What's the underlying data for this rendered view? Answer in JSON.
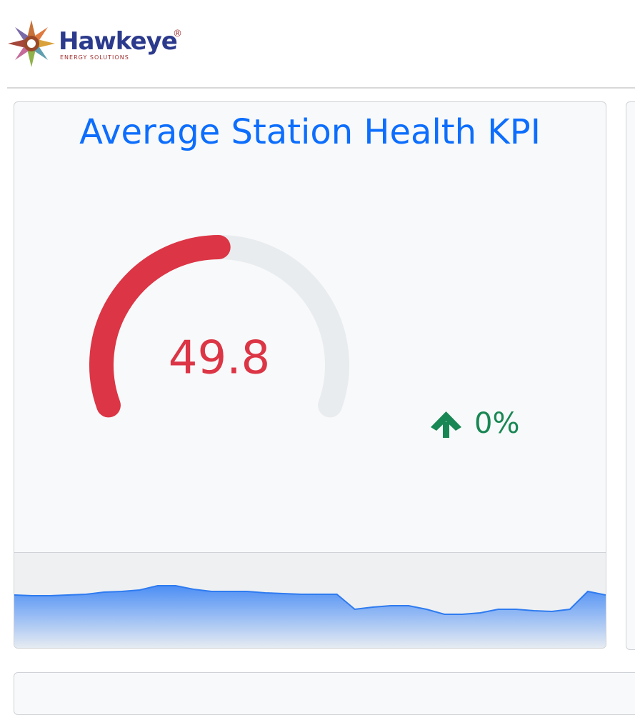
{
  "header": {
    "brand": "Hawkeye",
    "registered": "®",
    "tagline": "ENERGY SOLUTIONS"
  },
  "card": {
    "title": "Average Station Health KPI",
    "gauge": {
      "value": 49.8,
      "label": "49.8",
      "lim": [
        0,
        100
      ]
    },
    "change": "0%",
    "sparkline": {
      "values": [
        74,
        73,
        73,
        74,
        75,
        78,
        79,
        81,
        87,
        87,
        82,
        79,
        79,
        79,
        77,
        76,
        75,
        75,
        75,
        54,
        57,
        59,
        59,
        54,
        47,
        47,
        49,
        54,
        54,
        52,
        51,
        54,
        79,
        74
      ],
      "ylim": [
        0,
        134
      ],
      "color": "#2f7bf0"
    }
  }
}
